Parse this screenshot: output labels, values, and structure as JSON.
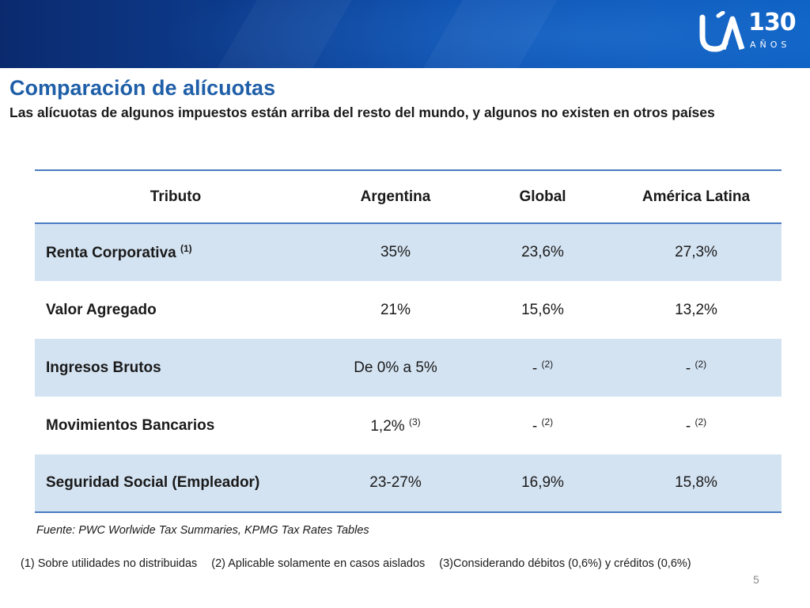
{
  "logo": {
    "number": "130",
    "subtitle": "AÑOS",
    "accent_color": "#ffffff"
  },
  "header": {
    "title": "Comparación de alícuotas",
    "subtitle": "Las alícuotas de algunos impuestos están arriba del resto del mundo, y algunos no existen en otros países"
  },
  "table": {
    "columns": [
      "Tributo",
      "Argentina",
      "Global",
      "América Latina"
    ],
    "rows": [
      {
        "tributo": "Renta Corporativa",
        "tributo_note": "(1)",
        "argentina": "35%",
        "argentina_note": "",
        "global": "23,6%",
        "global_note": "",
        "latam": "27,3%",
        "latam_note": ""
      },
      {
        "tributo": "Valor Agregado",
        "tributo_note": "",
        "argentina": "21%",
        "argentina_note": "",
        "global": "15,6%",
        "global_note": "",
        "latam": "13,2%",
        "latam_note": ""
      },
      {
        "tributo": "Ingresos Brutos",
        "tributo_note": "",
        "argentina": "De 0% a 5%",
        "argentina_note": "",
        "global": "-",
        "global_note": "(2)",
        "latam": "-",
        "latam_note": "(2)"
      },
      {
        "tributo": "Movimientos Bancarios",
        "tributo_note": "",
        "argentina": "1,2%",
        "argentina_note": "(3)",
        "global": "-",
        "global_note": "(2)",
        "latam": "-",
        "latam_note": "(2)"
      },
      {
        "tributo": "Seguridad Social (Empleador)",
        "tributo_note": "",
        "argentina": "23-27%",
        "argentina_note": "",
        "global": "16,9%",
        "global_note": "",
        "latam": "15,8%",
        "latam_note": ""
      }
    ]
  },
  "source": "Fuente: PWC Worlwide Tax Summaries, KPMG Tax Rates Tables",
  "notes": [
    "(1)  Sobre utilidades no distribuidas",
    "(2) Aplicable solamente en casos aislados",
    "(3)Considerando débitos (0,6%) y créditos (0,6%)"
  ],
  "page_number": "5",
  "colors": {
    "title": "#1f5fa8",
    "band": "#0d3f93",
    "row_shade": "#d4e3f2",
    "rule": "#4a7cbf"
  }
}
